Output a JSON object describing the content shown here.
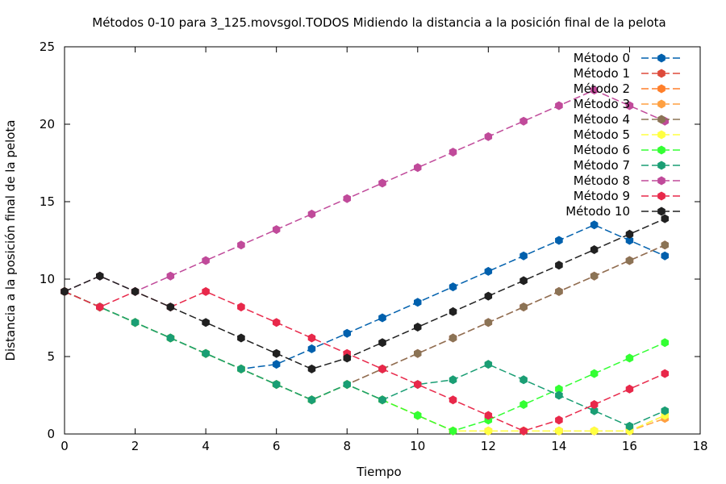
{
  "chart_data": {
    "type": "line",
    "title": "Métodos 0-10 para 3_125.movsgol.TODOS Midiendo la distancia a la posición final de la pelota",
    "xlabel": "Tiempo",
    "ylabel": "Distancia a la posición final de la pelota",
    "xlim": [
      0,
      18
    ],
    "ylim": [
      0,
      25
    ],
    "xticks": [
      "0",
      "2",
      "4",
      "6",
      "8",
      "10",
      "12",
      "14",
      "16",
      "18"
    ],
    "yticks": [
      "0",
      "5",
      "10",
      "15",
      "20",
      "25"
    ],
    "grid": false,
    "legend_position": "top-right",
    "x": [
      0,
      1,
      2,
      3,
      4,
      5,
      6,
      7,
      8,
      9,
      10,
      11,
      12,
      13,
      14,
      15,
      16,
      17
    ],
    "series": [
      {
        "name": "Método 0",
        "color": "#0060ad",
        "values": [
          9.2,
          8.2,
          7.2,
          6.2,
          5.2,
          4.2,
          4.5,
          5.5,
          6.5,
          7.5,
          8.5,
          9.5,
          10.5,
          11.5,
          12.5,
          13.5,
          12.5,
          11.5
        ]
      },
      {
        "name": "Método 1",
        "color": "#dd4a3a",
        "values": [
          9.2,
          8.2,
          7.2,
          6.2,
          5.2,
          4.2,
          3.2,
          2.2,
          3.2,
          4.2,
          5.2,
          6.2,
          7.2,
          8.2,
          9.2,
          10.2,
          11.2,
          12.2
        ]
      },
      {
        "name": "Método 2",
        "color": "#ff7f2a",
        "values": [
          9.2,
          8.2,
          7.2,
          6.2,
          5.2,
          4.2,
          3.2,
          2.2,
          3.2,
          2.2,
          1.2,
          0.2,
          0.2,
          0.2,
          0.2,
          0.2,
          0.2,
          1.2
        ]
      },
      {
        "name": "Método 3",
        "color": "#ffa040",
        "values": [
          9.2,
          8.2,
          7.2,
          6.2,
          5.2,
          4.2,
          3.2,
          2.2,
          3.2,
          2.2,
          1.2,
          0.2,
          0.2,
          0.2,
          0.2,
          0.2,
          0.2,
          1.0
        ]
      },
      {
        "name": "Método 4",
        "color": "#8b7355",
        "values": [
          9.2,
          8.2,
          7.2,
          6.2,
          5.2,
          4.2,
          3.2,
          2.2,
          3.2,
          4.2,
          5.2,
          6.2,
          7.2,
          8.2,
          9.2,
          10.2,
          11.2,
          12.2
        ]
      },
      {
        "name": "Método 5",
        "color": "#ffff40",
        "values": [
          9.2,
          8.2,
          7.2,
          6.2,
          5.2,
          4.2,
          3.2,
          2.2,
          3.2,
          2.2,
          1.2,
          0.2,
          0.2,
          0.2,
          0.2,
          0.2,
          0.2,
          1.2
        ]
      },
      {
        "name": "Método 6",
        "color": "#33ff33",
        "values": [
          9.2,
          8.2,
          7.2,
          6.2,
          5.2,
          4.2,
          3.2,
          2.2,
          3.2,
          2.2,
          1.2,
          0.2,
          0.9,
          1.9,
          2.9,
          3.9,
          4.9,
          5.9
        ]
      },
      {
        "name": "Método 7",
        "color": "#1a9e74",
        "values": [
          9.2,
          8.2,
          7.2,
          6.2,
          5.2,
          4.2,
          3.2,
          2.2,
          3.2,
          2.2,
          3.2,
          3.5,
          4.5,
          3.5,
          2.5,
          1.5,
          0.5,
          1.5
        ]
      },
      {
        "name": "Método 8",
        "color": "#c04a9a",
        "values": [
          9.2,
          10.2,
          9.2,
          10.2,
          11.2,
          12.2,
          13.2,
          14.2,
          15.2,
          16.2,
          17.2,
          18.2,
          19.2,
          20.2,
          21.2,
          22.2,
          21.2,
          20.2
        ]
      },
      {
        "name": "Método 9",
        "color": "#e8284a",
        "values": [
          9.2,
          8.2,
          9.2,
          8.2,
          9.2,
          8.2,
          7.2,
          6.2,
          5.2,
          4.2,
          3.2,
          2.2,
          1.2,
          0.2,
          0.9,
          1.9,
          2.9,
          3.9
        ]
      },
      {
        "name": "Método 10",
        "color": "#202020",
        "values": [
          9.2,
          10.2,
          9.2,
          8.2,
          7.2,
          6.2,
          5.2,
          4.2,
          4.9,
          5.9,
          6.9,
          7.9,
          8.9,
          9.9,
          10.9,
          11.9,
          12.9,
          13.9
        ]
      }
    ]
  }
}
